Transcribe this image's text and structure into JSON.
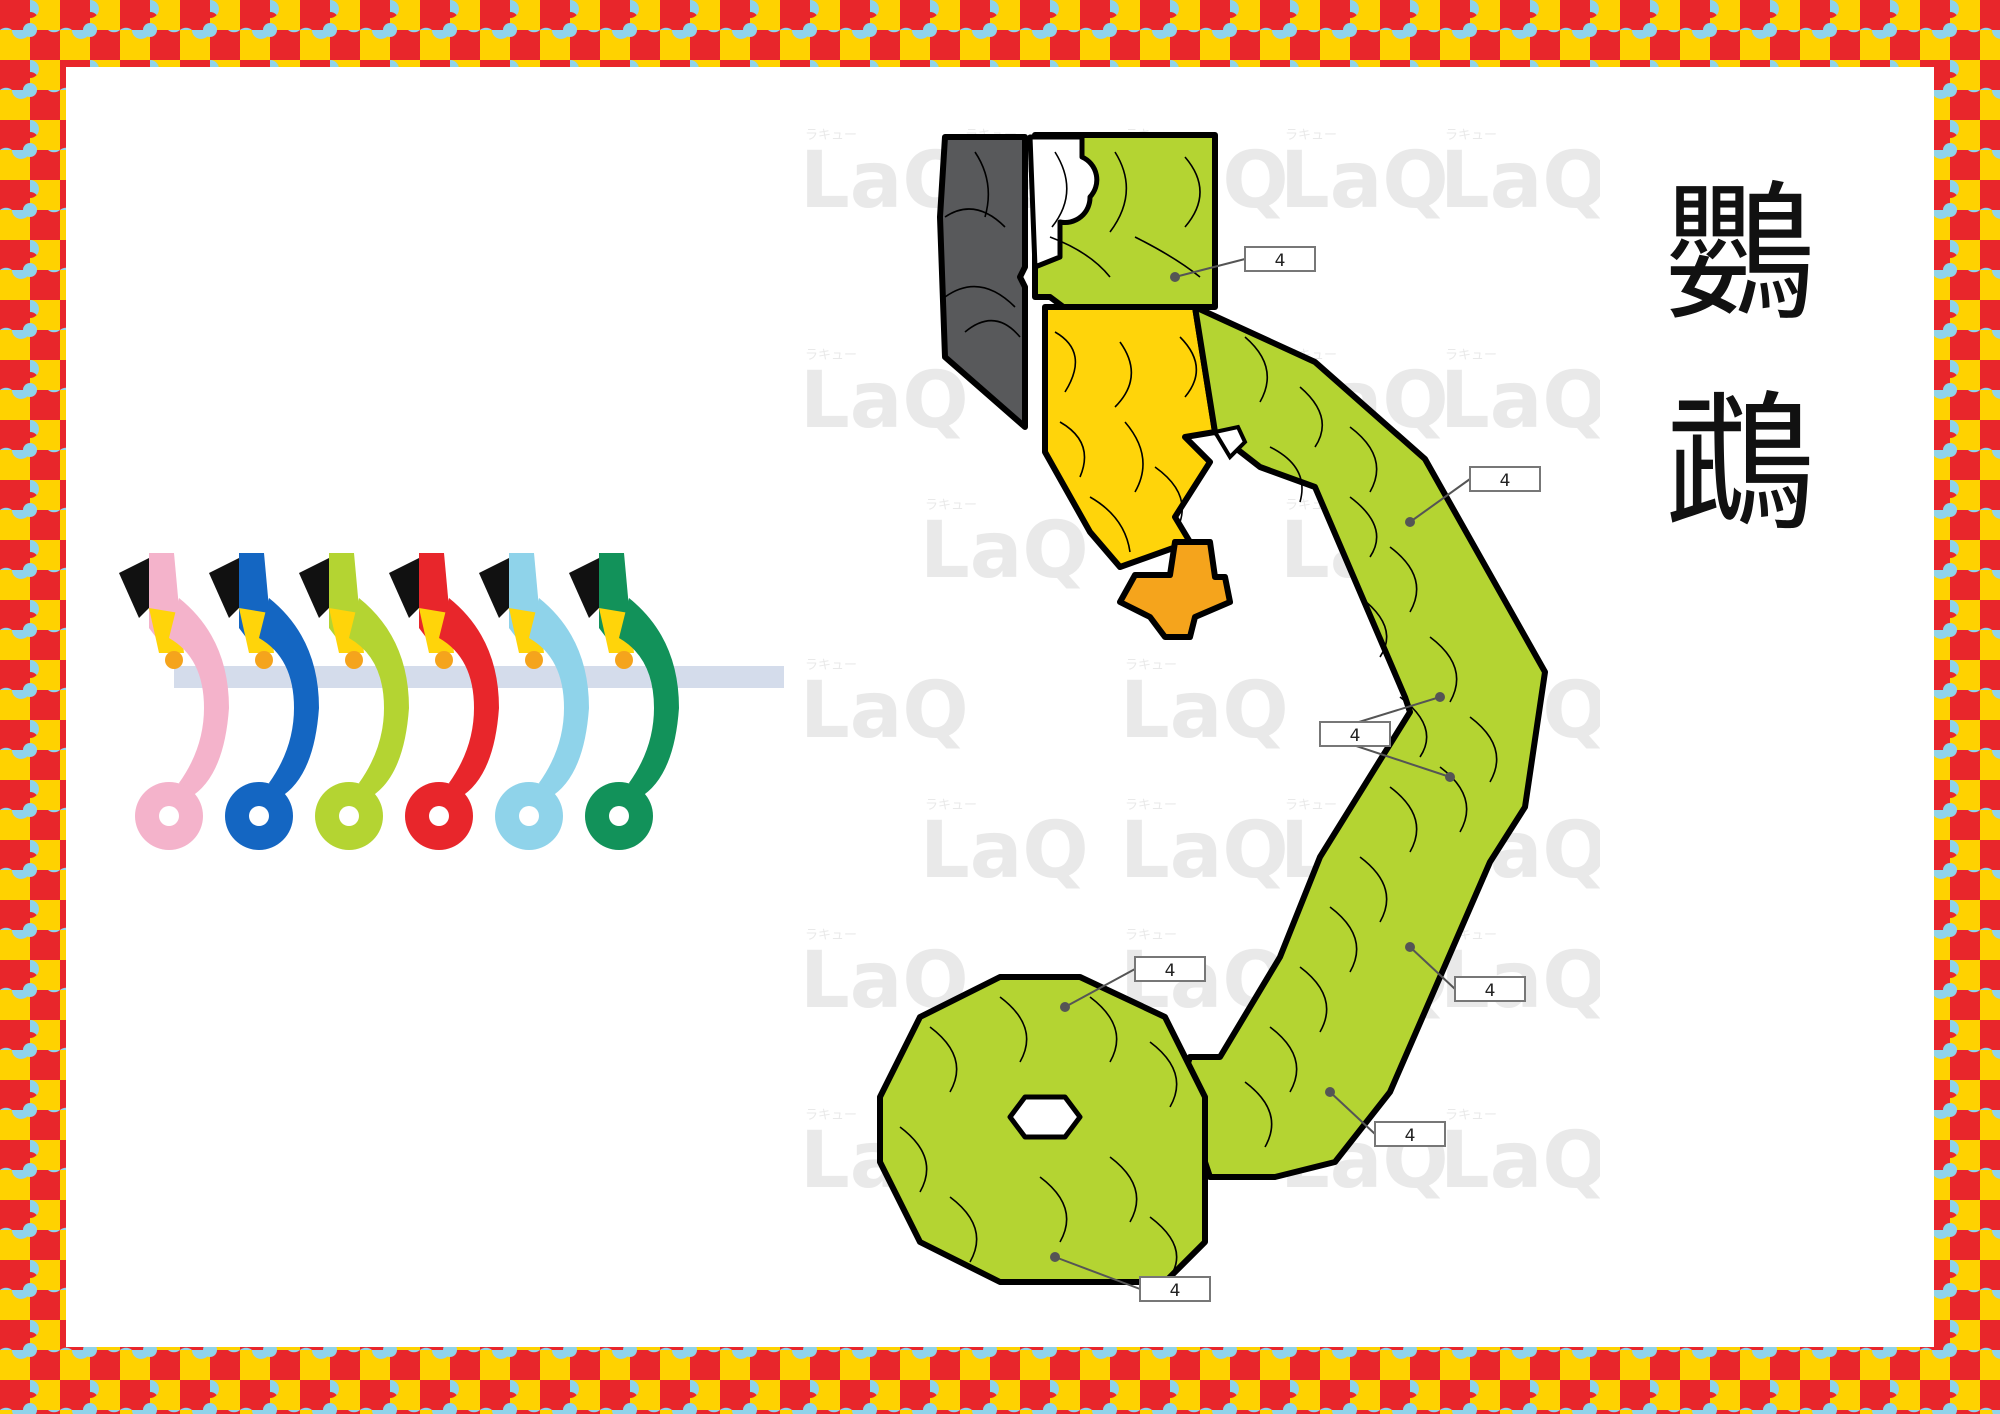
{
  "title": {
    "line1": "鸚",
    "line2": "鵡"
  },
  "watermark": "LaQ",
  "watermark_sub": "ラキュー",
  "piece_label": "4",
  "colors": {
    "red": "#e8262b",
    "yellow": "#ffd200",
    "light_blue": "#8fd3ea",
    "lime": "#b4d432",
    "gold": "#ffd40a",
    "orange": "#f5a41c",
    "gray": "#58595b",
    "pink": "#f4b3cb",
    "blue": "#1466c2",
    "dark_green": "#12925a"
  },
  "parrot_colors": [
    "pink",
    "blue",
    "lime",
    "red",
    "light_blue",
    "dark_green"
  ]
}
